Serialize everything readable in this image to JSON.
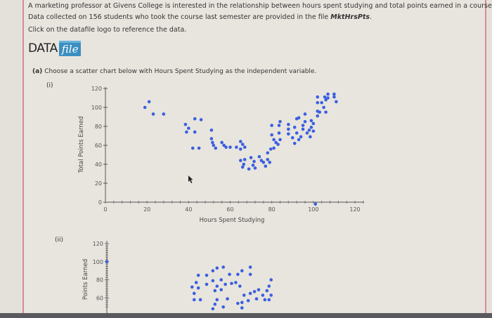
{
  "intro": {
    "line1": "A marketing professor at Givens College is interested in the relationship between hours spent studying and total points earned in a course.",
    "line2_prefix": "Data collected on 156 students who took the course last semester are provided in the file ",
    "line2_file": "MktHrsPts",
    "line2_suffix": ".",
    "line3": "Click on the datafile logo to reference the data."
  },
  "logo": {
    "data": "DATA",
    "file": "file"
  },
  "question": {
    "label": "(a)",
    "text": "Choose a scatter chart below with Hours Spent Studying as the independent variable."
  },
  "options": [
    {
      "label": "(i)"
    },
    {
      "label": "(ii)"
    }
  ],
  "colors": {
    "point": "#3a5fe0",
    "axis": "#555555"
  },
  "chart_data": [
    {
      "type": "scatter",
      "option": "(i)",
      "xlabel": "Hours Spent Studying",
      "ylabel": "Total Points Earned",
      "xlim": [
        0,
        120
      ],
      "ylim": [
        0,
        120
      ],
      "xticks": [
        "0",
        "20",
        "40",
        "60",
        "80",
        "100",
        "120"
      ],
      "yticks": [
        "0",
        "20",
        "40",
        "60",
        "80",
        "100",
        "120"
      ],
      "grid": false,
      "points": [
        [
          19,
          100
        ],
        [
          21,
          106
        ],
        [
          23,
          93
        ],
        [
          28,
          93
        ],
        [
          38.5,
          82
        ],
        [
          40,
          78
        ],
        [
          39,
          74
        ],
        [
          43,
          74
        ],
        [
          43,
          88
        ],
        [
          46,
          87
        ],
        [
          42,
          57
        ],
        [
          45,
          57
        ],
        [
          51,
          76
        ],
        [
          51,
          67
        ],
        [
          51.5,
          63
        ],
        [
          52,
          60
        ],
        [
          53,
          57
        ],
        [
          56,
          63
        ],
        [
          57,
          60
        ],
        [
          58,
          58
        ],
        [
          60,
          58
        ],
        [
          63,
          58
        ],
        [
          65,
          64
        ],
        [
          66,
          61
        ],
        [
          65,
          56
        ],
        [
          67,
          58
        ],
        [
          65,
          44
        ],
        [
          67,
          45
        ],
        [
          66.5,
          40
        ],
        [
          66,
          37
        ],
        [
          69,
          35
        ],
        [
          70,
          47
        ],
        [
          71.5,
          43
        ],
        [
          72,
          36
        ],
        [
          71,
          39
        ],
        [
          74,
          48
        ],
        [
          75,
          44
        ],
        [
          76,
          42
        ],
        [
          77,
          38
        ],
        [
          78,
          45
        ],
        [
          79,
          42
        ],
        [
          78,
          52
        ],
        [
          79.5,
          56
        ],
        [
          81,
          57
        ],
        [
          80,
          81
        ],
        [
          80,
          71
        ],
        [
          81,
          66
        ],
        [
          82,
          63
        ],
        [
          83.5,
          81
        ],
        [
          84,
          85
        ],
        [
          83.5,
          73
        ],
        [
          84,
          66
        ],
        [
          83,
          61
        ],
        [
          88,
          82
        ],
        [
          88,
          77
        ],
        [
          88,
          72
        ],
        [
          90,
          68
        ],
        [
          92,
          88
        ],
        [
          93,
          89
        ],
        [
          91,
          79
        ],
        [
          92,
          73
        ],
        [
          91,
          62
        ],
        [
          93,
          66
        ],
        [
          94,
          69
        ],
        [
          95,
          77
        ],
        [
          96,
          85
        ],
        [
          96,
          93
        ],
        [
          95,
          81
        ],
        [
          97,
          73
        ],
        [
          98,
          76
        ],
        [
          98.5,
          69
        ],
        [
          99,
          79
        ],
        [
          99,
          86
        ],
        [
          100,
          83
        ],
        [
          100,
          75
        ],
        [
          102,
          91
        ],
        [
          102,
          96
        ],
        [
          102,
          105
        ],
        [
          102,
          111
        ],
        [
          103,
          95
        ],
        [
          104,
          105
        ],
        [
          105,
          100
        ],
        [
          105.5,
          111
        ],
        [
          106,
          95
        ],
        [
          106,
          108
        ],
        [
          107,
          114
        ],
        [
          107,
          110
        ],
        [
          110,
          114
        ],
        [
          110,
          111
        ],
        [
          111,
          106
        ],
        [
          101,
          -2
        ]
      ]
    },
    {
      "type": "scatter",
      "option": "(ii)",
      "ylabel": "Points Earned",
      "yticks": [
        "60",
        "80",
        "100",
        "120"
      ],
      "grid": false,
      "points": [
        [
          0,
          100
        ],
        [
          44,
          85
        ],
        [
          43,
          77
        ],
        [
          41,
          72
        ],
        [
          44,
          71
        ],
        [
          42,
          65
        ],
        [
          45,
          58
        ],
        [
          42,
          58
        ],
        [
          48,
          85
        ],
        [
          51,
          90
        ],
        [
          53,
          93
        ],
        [
          56,
          94
        ],
        [
          59,
          86
        ],
        [
          63,
          86
        ],
        [
          65,
          90
        ],
        [
          69,
          94
        ],
        [
          69,
          86
        ],
        [
          48,
          75
        ],
        [
          51,
          79
        ],
        [
          53,
          73
        ],
        [
          55,
          80
        ],
        [
          57,
          75
        ],
        [
          60,
          76
        ],
        [
          62,
          77
        ],
        [
          64,
          73
        ],
        [
          52,
          68
        ],
        [
          55,
          69
        ],
        [
          53,
          58
        ],
        [
          52,
          53
        ],
        [
          51,
          48
        ],
        [
          56,
          50
        ],
        [
          58,
          59
        ],
        [
          63,
          54
        ],
        [
          65,
          55
        ],
        [
          66,
          63
        ],
        [
          68,
          57
        ],
        [
          69,
          65
        ],
        [
          71,
          67
        ],
        [
          72,
          59
        ],
        [
          73,
          69
        ],
        [
          75,
          63
        ],
        [
          77,
          68
        ],
        [
          78,
          73
        ],
        [
          79,
          80
        ],
        [
          79,
          63
        ],
        [
          78,
          58
        ],
        [
          76,
          58
        ],
        [
          65,
          49
        ]
      ]
    }
  ]
}
